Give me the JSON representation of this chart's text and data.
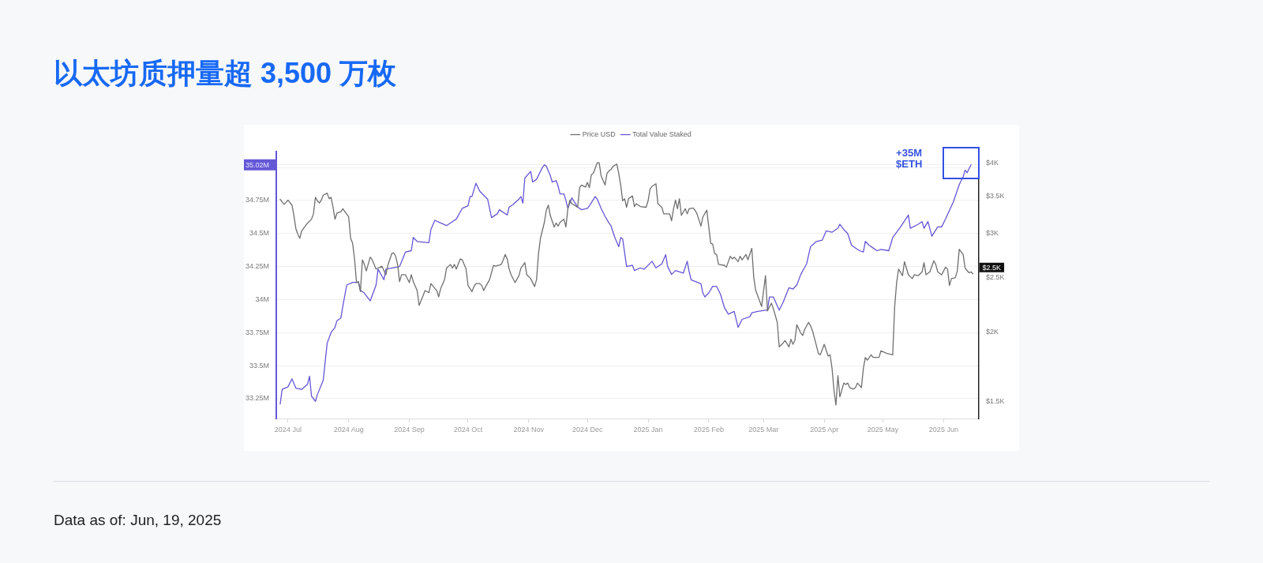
{
  "chart_data": {
    "type": "line",
    "title": "以太坊质押量超 3,500 万枚",
    "annotations": [
      "+35M $ETH",
      "Data as of: Jun, 19, 2025"
    ],
    "legend": "top",
    "grid": "y",
    "log": "y2",
    "xlim": [
      "2024-06-25",
      "2025-06-19"
    ],
    "xticks": [
      {
        "value": "2024-07-01",
        "label": "2024 Jul"
      },
      {
        "value": "2024-08-01",
        "label": "2024 Aug"
      },
      {
        "value": "2024-09-01",
        "label": "2024 Sep"
      },
      {
        "value": "2024-10-01",
        "label": "2024 Oct"
      },
      {
        "value": "2024-11-01",
        "label": "2024 Nov"
      },
      {
        "value": "2024-12-01",
        "label": "2024 Dec"
      },
      {
        "value": "2025-01-01",
        "label": "2025 Jan"
      },
      {
        "value": "2025-02-01",
        "label": "2025 Feb"
      },
      {
        "value": "2025-03-01",
        "label": "2025 Mar"
      },
      {
        "value": "2025-04-01",
        "label": "2025 Apr"
      },
      {
        "value": "2025-05-01",
        "label": "2025 May"
      },
      {
        "value": "2025-06-01",
        "label": "2025 Jun"
      }
    ],
    "ylim": [
      33.1,
      35.12
    ],
    "yticks": [
      {
        "value": 33.25,
        "label": "33.25M"
      },
      {
        "value": 33.5,
        "label": "33.5M"
      },
      {
        "value": 33.75,
        "label": "33.75M"
      },
      {
        "value": 34,
        "label": "34M"
      },
      {
        "value": 34.25,
        "label": "34.25M"
      },
      {
        "value": 34.5,
        "label": "34.5M"
      },
      {
        "value": 34.75,
        "label": "34.75M"
      },
      {
        "value": 35,
        "label": null
      },
      {
        "value": 35.02,
        "label": "35.02M"
      }
    ],
    "y2lim": [
      1400,
      4200
    ],
    "y2ticks": [
      {
        "value": 1500,
        "label": "$1.5K"
      },
      {
        "value": 2000,
        "label": "$2K"
      },
      {
        "value": 2500,
        "label": "$2.5K"
      },
      {
        "value": 3000,
        "label": "$3K"
      },
      {
        "value": 3500,
        "label": "$3.5K"
      },
      {
        "value": 4000,
        "label": "$4K"
      }
    ],
    "series": [
      {
        "name": "Price USD",
        "color": "#707070",
        "axis": "y2",
        "x": [
          "2024-06-27",
          "2024-06-29",
          "2024-07-01",
          "2024-07-03",
          "2024-07-04",
          "2024-07-05",
          "2024-07-06",
          "2024-07-07",
          "2024-07-08",
          "2024-07-11",
          "2024-07-13",
          "2024-07-14",
          "2024-07-15",
          "2024-07-16",
          "2024-07-17",
          "2024-07-18",
          "2024-07-19",
          "2024-07-21",
          "2024-07-22",
          "2024-07-23",
          "2024-07-24",
          "2024-07-25",
          "2024-07-26",
          "2024-07-28",
          "2024-07-29",
          "2024-08-01",
          "2024-08-02",
          "2024-08-03",
          "2024-08-04",
          "2024-08-05",
          "2024-08-06",
          "2024-08-07",
          "2024-08-08",
          "2024-08-09",
          "2024-08-10",
          "2024-08-12",
          "2024-08-13",
          "2024-08-15",
          "2024-08-18",
          "2024-08-20",
          "2024-08-21",
          "2024-08-23",
          "2024-08-24",
          "2024-08-25",
          "2024-08-26",
          "2024-08-27",
          "2024-08-28",
          "2024-08-30",
          "2024-09-01",
          "2024-09-02",
          "2024-09-03",
          "2024-09-05",
          "2024-09-06",
          "2024-09-08",
          "2024-09-09",
          "2024-09-11",
          "2024-09-12",
          "2024-09-15",
          "2024-09-16",
          "2024-09-17",
          "2024-09-19",
          "2024-09-20",
          "2024-09-22",
          "2024-09-23",
          "2024-09-24",
          "2024-09-25",
          "2024-09-27",
          "2024-09-28",
          "2024-09-30",
          "2024-10-01",
          "2024-10-03",
          "2024-10-04",
          "2024-10-05",
          "2024-10-07",
          "2024-10-08",
          "2024-10-09",
          "2024-10-10",
          "2024-10-12",
          "2024-10-14",
          "2024-10-15",
          "2024-10-18",
          "2024-10-19",
          "2024-10-20",
          "2024-10-21",
          "2024-10-22",
          "2024-10-23",
          "2024-10-25",
          "2024-10-27",
          "2024-10-28",
          "2024-10-30",
          "2024-10-31",
          "2024-11-02",
          "2024-11-04",
          "2024-11-05",
          "2024-11-06",
          "2024-11-07",
          "2024-11-09",
          "2024-11-10",
          "2024-11-11",
          "2024-11-12",
          "2024-11-14",
          "2024-11-15",
          "2024-11-16",
          "2024-11-17",
          "2024-11-19",
          "2024-11-20",
          "2024-11-21",
          "2024-11-22",
          "2024-11-23",
          "2024-11-26",
          "2024-11-27",
          "2024-11-28",
          "2024-11-30",
          "2024-12-01",
          "2024-12-02",
          "2024-12-03",
          "2024-12-04",
          "2024-12-06",
          "2024-12-07",
          "2024-12-08",
          "2024-12-10",
          "2024-12-11",
          "2024-12-12",
          "2024-12-13",
          "2024-12-14",
          "2024-12-16",
          "2024-12-17",
          "2024-12-18",
          "2024-12-19",
          "2024-12-20",
          "2024-12-21",
          "2024-12-22",
          "2024-12-24",
          "2024-12-25",
          "2024-12-26",
          "2024-12-28",
          "2024-12-31",
          "2025-01-01",
          "2025-01-02",
          "2025-01-03",
          "2025-01-05",
          "2025-01-06",
          "2025-01-08",
          "2025-01-09",
          "2025-01-12",
          "2025-01-13",
          "2025-01-14",
          "2025-01-15",
          "2025-01-16",
          "2025-01-17",
          "2025-01-18",
          "2025-01-20",
          "2025-01-21",
          "2025-01-22",
          "2025-01-24",
          "2025-01-25",
          "2025-01-26",
          "2025-01-28",
          "2025-01-29",
          "2025-01-31",
          "2025-02-01",
          "2025-02-02",
          "2025-02-03",
          "2025-02-04",
          "2025-02-05",
          "2025-02-06",
          "2025-02-09",
          "2025-02-10",
          "2025-02-11",
          "2025-02-12",
          "2025-02-13",
          "2025-02-14",
          "2025-02-16",
          "2025-02-17",
          "2025-02-18",
          "2025-02-20",
          "2025-02-21",
          "2025-02-23",
          "2025-02-24",
          "2025-02-25",
          "2025-02-26",
          "2025-02-27",
          "2025-02-28",
          "2025-03-02",
          "2025-03-03",
          "2025-03-05",
          "2025-03-06",
          "2025-03-07",
          "2025-03-08",
          "2025-03-09",
          "2025-03-11",
          "2025-03-12",
          "2025-03-14",
          "2025-03-15",
          "2025-03-16",
          "2025-03-17",
          "2025-03-18",
          "2025-03-20",
          "2025-03-21",
          "2025-03-22",
          "2025-03-24",
          "2025-03-25",
          "2025-03-26",
          "2025-03-28",
          "2025-03-29",
          "2025-03-30",
          "2025-04-01",
          "2025-04-03",
          "2025-04-04",
          "2025-04-05",
          "2025-04-06",
          "2025-04-07",
          "2025-04-08",
          "2025-04-09",
          "2025-04-11",
          "2025-04-12",
          "2025-04-13",
          "2025-04-14",
          "2025-04-16",
          "2025-04-17",
          "2025-04-18",
          "2025-04-20",
          "2025-04-21",
          "2025-04-22",
          "2025-04-23",
          "2025-04-25",
          "2025-04-26",
          "2025-04-29",
          "2025-04-30",
          "2025-05-03",
          "2025-05-06",
          "2025-05-07",
          "2025-05-08",
          "2025-05-09",
          "2025-05-11",
          "2025-05-12",
          "2025-05-13",
          "2025-05-14",
          "2025-05-16",
          "2025-05-17",
          "2025-05-19",
          "2025-05-21",
          "2025-05-22",
          "2025-05-23",
          "2025-05-25",
          "2025-05-27",
          "2025-05-28",
          "2025-05-29",
          "2025-05-31",
          "2025-06-02",
          "2025-06-03",
          "2025-06-04",
          "2025-06-05",
          "2025-06-07",
          "2025-06-08",
          "2025-06-09",
          "2025-06-11",
          "2025-06-12",
          "2025-06-14",
          "2025-06-15",
          "2025-06-16"
        ],
        "values": [
          3450,
          3380,
          3440,
          3370,
          3230,
          3060,
          2990,
          2940,
          3030,
          3130,
          3180,
          3250,
          3480,
          3430,
          3400,
          3440,
          3510,
          3540,
          3460,
          3480,
          3340,
          3180,
          3260,
          3280,
          3320,
          3210,
          2940,
          2880,
          2700,
          2450,
          2460,
          2360,
          2690,
          2640,
          2570,
          2720,
          2690,
          2590,
          2620,
          2530,
          2630,
          2760,
          2770,
          2730,
          2640,
          2460,
          2530,
          2530,
          2450,
          2530,
          2460,
          2370,
          2230,
          2320,
          2370,
          2350,
          2440,
          2370,
          2310,
          2390,
          2480,
          2600,
          2640,
          2600,
          2640,
          2590,
          2700,
          2690,
          2590,
          2420,
          2360,
          2410,
          2440,
          2440,
          2420,
          2370,
          2410,
          2480,
          2630,
          2620,
          2640,
          2690,
          2750,
          2700,
          2590,
          2530,
          2450,
          2520,
          2600,
          2660,
          2530,
          2490,
          2410,
          2480,
          2760,
          2940,
          3140,
          3300,
          3370,
          3230,
          3080,
          3130,
          3090,
          3140,
          3180,
          3080,
          3320,
          3440,
          3390,
          3340,
          3620,
          3660,
          3630,
          3700,
          3620,
          3820,
          3840,
          4010,
          4010,
          3800,
          3660,
          3840,
          3880,
          3900,
          3950,
          3990,
          3840,
          3660,
          3430,
          3460,
          3340,
          3460,
          3500,
          3350,
          3390,
          3350,
          3340,
          3430,
          3600,
          3640,
          3680,
          3390,
          3340,
          3250,
          3250,
          3160,
          3320,
          3440,
          3320,
          3460,
          3230,
          3320,
          3250,
          3320,
          3330,
          3300,
          3250,
          3090,
          3210,
          3300,
          3080,
          2880,
          2870,
          2760,
          2750,
          2640,
          2630,
          2610,
          2670,
          2730,
          2700,
          2720,
          2670,
          2730,
          2690,
          2750,
          2690,
          2820,
          2500,
          2370,
          2320,
          2270,
          2220,
          2520,
          2180,
          2250,
          2200,
          2140,
          2080,
          1880,
          1910,
          1930,
          1880,
          1940,
          1900,
          1930,
          2060,
          1990,
          1970,
          2020,
          2080,
          2050,
          2010,
          1890,
          1830,
          1820,
          1900,
          1810,
          1820,
          1720,
          1570,
          1480,
          1670,
          1530,
          1620,
          1610,
          1620,
          1590,
          1580,
          1590,
          1620,
          1590,
          1720,
          1800,
          1780,
          1820,
          1800,
          1800,
          1850,
          1830,
          1820,
          2220,
          2450,
          2590,
          2520,
          2670,
          2600,
          2530,
          2490,
          2530,
          2520,
          2560,
          2660,
          2530,
          2560,
          2680,
          2640,
          2560,
          2530,
          2610,
          2590,
          2420,
          2490,
          2500,
          2570,
          2810,
          2750,
          2600,
          2550,
          2560,
          2540
        ],
        "value_labels": [
          null,
          null,
          null,
          null,
          null,
          null,
          null,
          null,
          null,
          null,
          null,
          null,
          null,
          null,
          null,
          null,
          null,
          null,
          null,
          null,
          null,
          null,
          null,
          null,
          null,
          null,
          null,
          null,
          null,
          null,
          null,
          null,
          null,
          null,
          null,
          null,
          null,
          null,
          null,
          null,
          null,
          null,
          null,
          null,
          null,
          null,
          null,
          null,
          null,
          null,
          null,
          null,
          null,
          null,
          null,
          null,
          null,
          null,
          null,
          null,
          null,
          null,
          null,
          null,
          null,
          null,
          null,
          null,
          null,
          null,
          null,
          null,
          null,
          null,
          null,
          null,
          null,
          null,
          null,
          null,
          null,
          null,
          null,
          null,
          null,
          null,
          null,
          null,
          null,
          null,
          null,
          null,
          null,
          null,
          null,
          null,
          null,
          null,
          null,
          null,
          null,
          null,
          null,
          null,
          null,
          null,
          null,
          null,
          null,
          null,
          null,
          null,
          null,
          null,
          null,
          null,
          null,
          null,
          null,
          null,
          null,
          null,
          null,
          null,
          null,
          null,
          null,
          null,
          null,
          null,
          null,
          null,
          null,
          null,
          null,
          null,
          null,
          null,
          null,
          null,
          null,
          null,
          null,
          null,
          null,
          null,
          null,
          null,
          null,
          null,
          null,
          null,
          null,
          null,
          null,
          null,
          null,
          null,
          null,
          null,
          null,
          null,
          null,
          null,
          null,
          null,
          null,
          null,
          null,
          null,
          null,
          null,
          null,
          null,
          null,
          null,
          null,
          null,
          null,
          null,
          null,
          null,
          null,
          null,
          null,
          null,
          null,
          null,
          null,
          null,
          null,
          null,
          null,
          null,
          null,
          null,
          null,
          null,
          null,
          null,
          null,
          null,
          null,
          null,
          null,
          null,
          null,
          null,
          null,
          null,
          null,
          null,
          null,
          null,
          null,
          null,
          null,
          null,
          null,
          null,
          null,
          null,
          null,
          null,
          null,
          null,
          null,
          null,
          null,
          null,
          null,
          null,
          null,
          null,
          null,
          null,
          null,
          null,
          null,
          null,
          null,
          null,
          null,
          null,
          null,
          null,
          null,
          null,
          null,
          null,
          null,
          null,
          null,
          null,
          null,
          null,
          null,
          null,
          null,
          null,
          "$2.5K"
        ]
      },
      {
        "name": "Total Value Staked",
        "color": "#6457d6",
        "x": [
          "2024-06-27",
          "2024-06-28",
          "2024-07-01",
          "2024-07-03",
          "2024-07-05",
          "2024-07-08",
          "2024-07-11",
          "2024-07-12",
          "2024-07-13",
          "2024-07-15",
          "2024-07-16",
          "2024-07-19",
          "2024-07-21",
          "2024-07-23",
          "2024-07-25",
          "2024-07-26",
          "2024-07-28",
          "2024-07-29",
          "2024-07-31",
          "2024-08-03",
          "2024-08-06",
          "2024-08-07",
          "2024-08-09",
          "2024-08-12",
          "2024-08-15",
          "2024-08-16",
          "2024-08-19",
          "2024-08-20",
          "2024-08-27",
          "2024-08-30",
          "2024-09-02",
          "2024-09-03",
          "2024-09-05",
          "2024-09-11",
          "2024-09-12",
          "2024-09-14",
          "2024-09-17",
          "2024-09-20",
          "2024-09-23",
          "2024-09-25",
          "2024-09-28",
          "2024-10-01",
          "2024-10-02",
          "2024-10-03",
          "2024-10-05",
          "2024-10-07",
          "2024-10-11",
          "2024-10-13",
          "2024-10-16",
          "2024-10-17",
          "2024-10-21",
          "2024-10-22",
          "2024-10-24",
          "2024-10-27",
          "2024-10-28",
          "2024-10-29",
          "2024-10-30",
          "2024-11-02",
          "2024-11-03",
          "2024-11-05",
          "2024-11-08",
          "2024-11-09",
          "2024-11-10",
          "2024-11-12",
          "2024-11-13",
          "2024-11-15",
          "2024-11-16",
          "2024-11-17",
          "2024-11-19",
          "2024-11-20",
          "2024-11-21",
          "2024-11-23",
          "2024-11-26",
          "2024-11-28",
          "2024-12-01",
          "2024-12-02",
          "2024-12-05",
          "2024-12-06",
          "2024-12-08",
          "2024-12-10",
          "2024-12-12",
          "2024-12-13",
          "2024-12-15",
          "2024-12-17",
          "2024-12-18",
          "2024-12-19",
          "2024-12-21",
          "2024-12-24",
          "2024-12-25",
          "2024-12-28",
          "2024-12-30",
          "2025-01-03",
          "2025-01-05",
          "2025-01-08",
          "2025-01-10",
          "2025-01-11",
          "2025-01-13",
          "2025-01-15",
          "2025-01-19",
          "2025-01-21",
          "2025-01-22",
          "2025-01-23",
          "2025-01-28",
          "2025-01-29",
          "2025-01-30",
          "2025-02-01",
          "2025-02-03",
          "2025-02-05",
          "2025-02-07",
          "2025-02-09",
          "2025-02-11",
          "2025-02-14",
          "2025-02-16",
          "2025-02-18",
          "2025-02-22",
          "2025-02-23",
          "2025-02-26",
          "2025-03-02",
          "2025-03-03",
          "2025-03-04",
          "2025-03-06",
          "2025-03-09",
          "2025-03-11",
          "2025-03-14",
          "2025-03-16",
          "2025-03-18",
          "2025-03-20",
          "2025-03-23",
          "2025-03-25",
          "2025-03-28",
          "2025-03-31",
          "2025-04-02",
          "2025-04-05",
          "2025-04-08",
          "2025-04-09",
          "2025-04-11",
          "2025-04-13",
          "2025-04-15",
          "2025-04-19",
          "2025-04-21",
          "2025-04-22",
          "2025-04-24",
          "2025-04-26",
          "2025-04-28",
          "2025-04-30",
          "2025-05-04",
          "2025-05-06",
          "2025-05-08",
          "2025-05-10",
          "2025-05-14",
          "2025-05-15",
          "2025-05-19",
          "2025-05-21",
          "2025-05-22",
          "2025-05-24",
          "2025-05-26",
          "2025-05-29",
          "2025-05-31",
          "2025-06-02",
          "2025-06-06",
          "2025-06-09",
          "2025-06-11",
          "2025-06-12",
          "2025-06-13",
          "2025-06-14",
          "2025-06-15"
        ],
        "values": [
          33.21,
          33.32,
          33.34,
          33.4,
          33.33,
          33.32,
          33.36,
          33.42,
          33.27,
          33.23,
          33.28,
          33.39,
          33.67,
          33.75,
          33.79,
          33.84,
          33.86,
          33.95,
          34.11,
          34.13,
          34.13,
          34.07,
          34.05,
          33.99,
          34.11,
          34.23,
          34.15,
          34.23,
          34.25,
          34.36,
          34.37,
          34.47,
          34.44,
          34.43,
          34.53,
          34.6,
          34.58,
          34.56,
          34.59,
          34.61,
          34.69,
          34.71,
          34.78,
          34.78,
          34.88,
          34.82,
          34.76,
          34.62,
          34.65,
          34.68,
          34.64,
          34.7,
          34.72,
          34.76,
          34.78,
          34.73,
          34.92,
          34.97,
          34.89,
          34.91,
          35.0,
          35.02,
          35.01,
          34.94,
          34.89,
          34.9,
          34.86,
          34.8,
          34.8,
          34.75,
          34.69,
          34.77,
          34.7,
          34.68,
          34.69,
          34.71,
          34.78,
          34.76,
          34.69,
          34.63,
          34.58,
          34.56,
          34.47,
          34.4,
          34.47,
          34.46,
          34.25,
          34.26,
          34.22,
          34.24,
          34.23,
          34.29,
          34.24,
          34.27,
          34.34,
          34.25,
          34.19,
          34.22,
          34.2,
          34.29,
          34.21,
          34.15,
          34.12,
          34.05,
          34.02,
          34.05,
          34.1,
          34.1,
          34.04,
          33.94,
          33.89,
          33.91,
          33.79,
          33.85,
          33.87,
          33.9,
          33.91,
          33.92,
          33.92,
          34.02,
          34.02,
          33.92,
          33.98,
          34.09,
          34.08,
          34.11,
          34.19,
          34.27,
          34.4,
          34.44,
          34.45,
          34.52,
          34.51,
          34.54,
          34.57,
          34.53,
          34.5,
          34.41,
          34.37,
          34.36,
          34.44,
          34.41,
          34.39,
          34.37,
          34.38,
          34.37,
          34.47,
          34.51,
          34.55,
          34.64,
          34.54,
          34.57,
          34.59,
          34.54,
          34.59,
          34.48,
          34.55,
          34.55,
          34.61,
          34.74,
          34.87,
          34.93,
          34.98,
          34.96,
          34.99,
          35.02
        ]
      }
    ]
  }
}
